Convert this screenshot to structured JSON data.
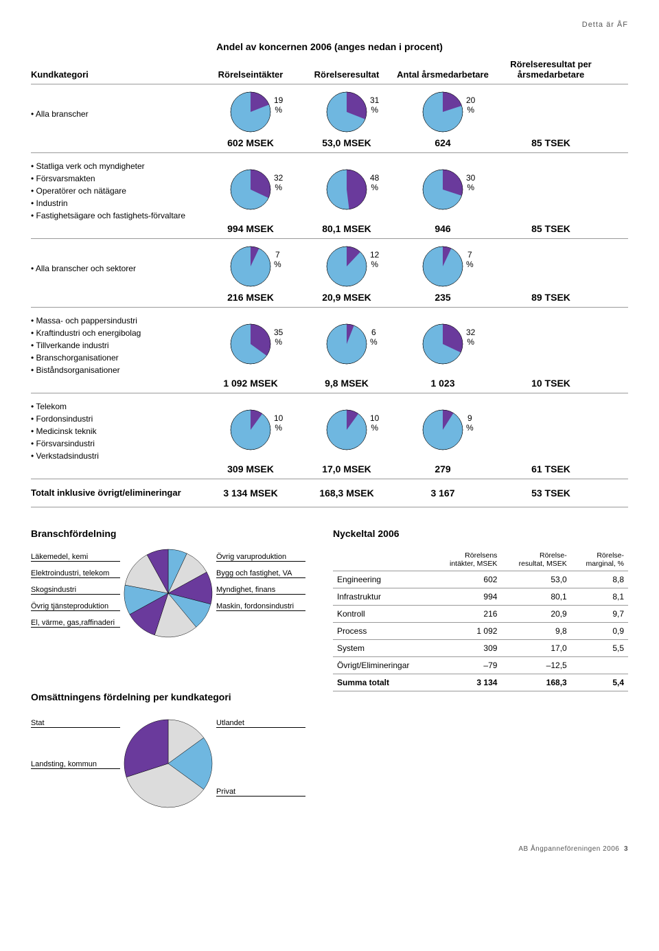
{
  "page_header": "Detta är ÅF",
  "main_title": "Andel av koncernen 2006 (anges nedan i procent)",
  "columns": {
    "cat": "Kundkategori",
    "c1": "Rörelseintäkter",
    "c2": "Rörelseresultat",
    "c3": "Antal årsmedarbetare",
    "c4": "Rörelseresultat per årsmedarbetare"
  },
  "colors": {
    "pie_main": "#6fb7e0",
    "pie_slice": "#6a3a9c",
    "pie_border": "#000000",
    "bg": "#ffffff"
  },
  "sections": [
    {
      "bullets": [
        "Alla branscher"
      ],
      "pies": [
        {
          "pct": 19,
          "label": "19 %"
        },
        {
          "pct": 31,
          "label": "31 %"
        },
        {
          "pct": 20,
          "label": "20 %"
        }
      ],
      "values": [
        "602 MSEK",
        "53,0 MSEK",
        "624",
        "85 TSEK"
      ]
    },
    {
      "bullets": [
        "Statliga verk och myndigheter",
        "Försvarsmakten",
        "Operatörer och nätägare",
        "Industrin",
        "Fastighetsägare och fastighets-förvaltare"
      ],
      "pies": [
        {
          "pct": 32,
          "label": "32 %"
        },
        {
          "pct": 48,
          "label": "48 %"
        },
        {
          "pct": 30,
          "label": "30 %"
        }
      ],
      "values": [
        "994 MSEK",
        "80,1 MSEK",
        "946",
        "85 TSEK"
      ]
    },
    {
      "bullets": [
        "Alla branscher och sektorer"
      ],
      "pies": [
        {
          "pct": 7,
          "label": "7 %"
        },
        {
          "pct": 12,
          "label": "12 %"
        },
        {
          "pct": 7,
          "label": "7 %"
        }
      ],
      "values": [
        "216 MSEK",
        "20,9 MSEK",
        "235",
        "89 TSEK"
      ]
    },
    {
      "bullets": [
        "Massa- och pappersindustri",
        "Kraftindustri och energibolag",
        "Tillverkande industri",
        "Branschorganisationer",
        "Biståndsorganisationer"
      ],
      "pies": [
        {
          "pct": 35,
          "label": "35 %"
        },
        {
          "pct": 6,
          "label": "6 %"
        },
        {
          "pct": 32,
          "label": "32 %"
        }
      ],
      "values": [
        "1 092 MSEK",
        "9,8 MSEK",
        "1 023",
        "10 TSEK"
      ]
    },
    {
      "bullets": [
        "Telekom",
        "Fordonsindustri",
        "Medicinsk teknik",
        "Försvarsindustri",
        "Verkstadsindustri"
      ],
      "pies": [
        {
          "pct": 10,
          "label": "10 %"
        },
        {
          "pct": 10,
          "label": "10 %"
        },
        {
          "pct": 9,
          "label": "9 %"
        }
      ],
      "values": [
        "309 MSEK",
        "17,0 MSEK",
        "279",
        "61 TSEK"
      ]
    }
  ],
  "totals": {
    "label": "Totalt inklusive övrigt/elimineringar",
    "values": [
      "3 134 MSEK",
      "168,3 MSEK",
      "3 167",
      "53 TSEK"
    ]
  },
  "branch": {
    "title": "Branschfördelning",
    "slices": [
      {
        "label": "Läkemedel, kemi",
        "pct": 7,
        "color": "#6fb7e0"
      },
      {
        "label": "Elektroindustri, telekom",
        "pct": 10,
        "color": "#dcdcdc"
      },
      {
        "label": "Skogsindustri",
        "pct": 12,
        "color": "#6a3a9c"
      },
      {
        "label": "Övrig tjänsteproduktion",
        "pct": 10,
        "color": "#6fb7e0"
      },
      {
        "label": "El, värme, gas,raffinaderi",
        "pct": 16,
        "color": "#dcdcdc"
      },
      {
        "label": "Maskin, fordonsindustri",
        "pct": 12,
        "color": "#6a3a9c"
      },
      {
        "label": "Myndighet, finans",
        "pct": 11,
        "color": "#6fb7e0"
      },
      {
        "label": "Bygg och fastighet, VA",
        "pct": 14,
        "color": "#dcdcdc"
      },
      {
        "label": "Övrig varuproduktion",
        "pct": 8,
        "color": "#6a3a9c"
      }
    ],
    "left_labels": [
      "Läkemedel, kemi",
      "Elektroindustri, telekom",
      "Skogsindustri",
      "Övrig tjänsteproduktion",
      "El, värme, gas,raffinaderi"
    ],
    "right_labels": [
      "Övrig varuproduktion",
      "Bygg och fastighet, VA",
      "Myndighet, finans",
      "Maskin, fordonsindustri"
    ]
  },
  "nyckel": {
    "title": "Nyckeltal 2006",
    "headers": [
      "",
      "Rörelsens intäkter, MSEK",
      "Rörelse-resultat, MSEK",
      "Rörelse-marginal, %"
    ],
    "rows": [
      [
        "Engineering",
        "602",
        "53,0",
        "8,8"
      ],
      [
        "Infrastruktur",
        "994",
        "80,1",
        "8,1"
      ],
      [
        "Kontroll",
        "216",
        "20,9",
        "9,7"
      ],
      [
        "Process",
        "1 092",
        "9,8",
        "0,9"
      ],
      [
        "System",
        "309",
        "17,0",
        "5,5"
      ],
      [
        "Övrigt/Elimineringar",
        "–79",
        "–12,5",
        ""
      ]
    ],
    "sum": [
      "Summa totalt",
      "3 134",
      "168,3",
      "5,4"
    ]
  },
  "oms": {
    "title": "Omsättningens fördelning per kundkategori",
    "slices": [
      {
        "label": "Stat",
        "pct": 15,
        "color": "#dcdcdc"
      },
      {
        "label": "Landsting, kommun",
        "pct": 20,
        "color": "#6fb7e0"
      },
      {
        "label": "Privat",
        "pct": 35,
        "color": "#dcdcdc"
      },
      {
        "label": "Utlandet",
        "pct": 30,
        "color": "#6a3a9c"
      }
    ],
    "labels": {
      "stat": "Stat",
      "landsting": "Landsting, kommun",
      "utlandet": "Utlandet",
      "privat": "Privat"
    }
  },
  "footer": "AB Ångpanneföreningen 2006",
  "footer_page": "3"
}
